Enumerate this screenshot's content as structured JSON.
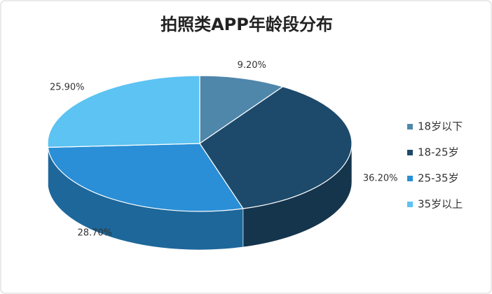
{
  "chart_data": {
    "type": "pie",
    "title": "拍照类APP年龄段分布",
    "categories": [
      "18岁以下",
      "18-25岁",
      "25-35岁",
      "35岁以上"
    ],
    "values": [
      9.2,
      36.2,
      28.7,
      25.9
    ],
    "value_labels": [
      "9.20%",
      "36.20%",
      "28.70%",
      "25.90%"
    ],
    "colors": [
      "#4f87ab",
      "#1d4a6b",
      "#2a8fd6",
      "#5cc3f2"
    ],
    "legend": "right"
  }
}
